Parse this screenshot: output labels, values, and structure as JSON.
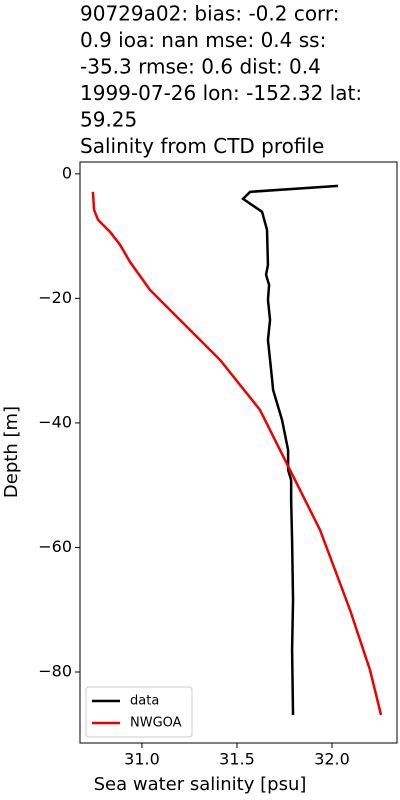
{
  "chart_data": {
    "type": "line",
    "title_lines": [
      "90729a02: bias: -0.2  corr:",
      "0.9  ioa: nan  mse: 0.4  ss:",
      "-35.3  rmse: 0.6  dist: 0.4",
      "1999-07-26 lon: -152.32 lat:",
      "59.25",
      "Salinity from CTD profile"
    ],
    "x_label": "Sea water salinity [psu]",
    "y_label": "Depth [m]",
    "xlim": [
      30.674,
      32.342
    ],
    "ylim": [
      -91.4,
      1.9
    ],
    "xticks": [
      {
        "value": 31,
        "label": "31.0"
      },
      {
        "value": 31.5,
        "label": "31.5"
      },
      {
        "value": 32,
        "label": "32.0"
      }
    ],
    "yticks": [
      0,
      {
        "value": -20,
        "label": "−20"
      },
      {
        "value": -40,
        "label": "−40"
      },
      {
        "value": -60,
        "label": "−60"
      },
      {
        "value": -80,
        "label": "−80"
      }
    ],
    "legend_position": "lower left",
    "series": [
      {
        "name": "data",
        "color": "#000000",
        "x": [
          32.032,
          31.569,
          31.532,
          31.632,
          31.658,
          31.663,
          31.653,
          31.669,
          31.663,
          31.674,
          31.663,
          31.674,
          31.685,
          31.69,
          31.737,
          31.769,
          31.769,
          31.785,
          31.785,
          31.79,
          31.795,
          31.79,
          31.795
        ],
        "values": [
          -1.93,
          -2.89,
          -4.02,
          -6.1,
          -8.99,
          -14.62,
          -16.22,
          -17.83,
          -20.24,
          -23.45,
          -26.67,
          -29.88,
          -33.09,
          -34.7,
          -39.52,
          -44.34,
          -47.55,
          -49.16,
          -52.37,
          -58.8,
          -68.43,
          -76.47,
          -86.9
        ]
      },
      {
        "name": "NWGOA",
        "color": "#ee0000",
        "x": [
          30.742,
          30.748,
          30.769,
          30.832,
          30.885,
          30.937,
          31.042,
          31.2,
          31.411,
          31.621,
          31.779,
          31.937,
          32.095,
          32.2,
          32.258
        ],
        "values": [
          -2.89,
          -5.78,
          -7.39,
          -9.32,
          -11.41,
          -14.14,
          -18.63,
          -23.45,
          -29.88,
          -37.91,
          -47.55,
          -57.19,
          -70.04,
          -79.68,
          -86.9
        ]
      }
    ]
  }
}
